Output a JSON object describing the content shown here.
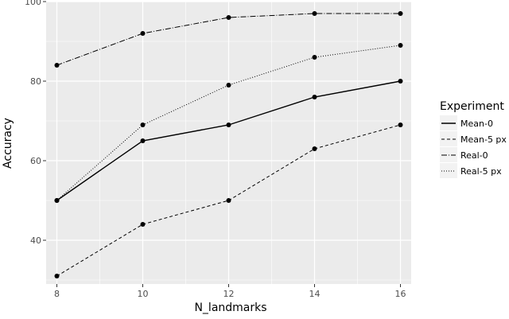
{
  "chart_data": {
    "type": "line",
    "x": [
      8,
      10,
      12,
      14,
      16
    ],
    "xlabel": "N_landmarks",
    "ylabel": "Accuracy",
    "xlim": [
      7.75,
      16.25
    ],
    "ylim": [
      29,
      100
    ],
    "xticks": [
      8,
      10,
      12,
      14,
      16
    ],
    "yticks": [
      40,
      60,
      80,
      100
    ],
    "grid": true,
    "legend": {
      "title": "Experiment",
      "position": "right"
    },
    "series": [
      {
        "name": "Mean-0",
        "values": [
          50,
          65,
          69,
          76,
          80
        ],
        "line_style": "solid"
      },
      {
        "name": "Mean-5 px",
        "values": [
          31,
          44,
          50,
          63,
          69
        ],
        "line_style": "dashed"
      },
      {
        "name": "Real-0",
        "values": [
          84,
          92,
          96,
          97,
          97
        ],
        "line_style": "dashdot"
      },
      {
        "name": "Real-5 px",
        "values": [
          50,
          69,
          79,
          86,
          89
        ],
        "line_style": "dotted"
      }
    ],
    "colors": {
      "panel_background": "#ebebeb",
      "grid": "#ffffff",
      "series": "#000000",
      "tick_text": "#4d4d4d"
    }
  }
}
